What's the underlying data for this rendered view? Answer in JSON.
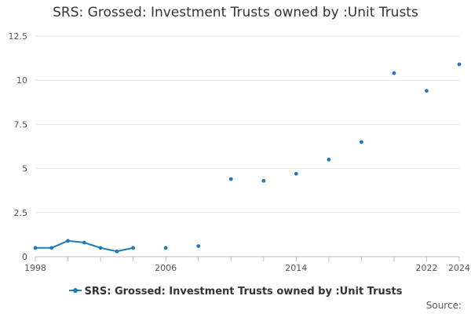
{
  "chart_data": {
    "type": "line",
    "title": "SRS: Grossed: Investment Trusts owned by :Unit Trusts",
    "xlabel": "",
    "ylabel": "",
    "xlim": [
      1998,
      2024
    ],
    "ylim": [
      0,
      12.5
    ],
    "x_ticks": [
      1998,
      2006,
      2014,
      2022,
      2024
    ],
    "y_ticks": [
      0,
      2.5,
      5,
      7.5,
      10,
      12.5
    ],
    "y_tick_labels": [
      "0",
      "2.5",
      "5",
      "7.5",
      "10",
      "12.5"
    ],
    "grid": true,
    "legend_position": "bottom",
    "series": [
      {
        "name": "SRS: Grossed: Investment Trusts owned by :Unit Trusts",
        "color": "#1f7ab8",
        "points": [
          {
            "x": 1998,
            "y": 0.5
          },
          {
            "x": 1999,
            "y": 0.5
          },
          {
            "x": 2000,
            "y": 0.9
          },
          {
            "x": 2001,
            "y": 0.8
          },
          {
            "x": 2002,
            "y": 0.5
          },
          {
            "x": 2003,
            "y": 0.3
          },
          {
            "x": 2004,
            "y": 0.5
          },
          {
            "x": 2006,
            "y": 0.5
          },
          {
            "x": 2008,
            "y": 0.6
          },
          {
            "x": 2010,
            "y": 4.4
          },
          {
            "x": 2012,
            "y": 4.3
          },
          {
            "x": 2014,
            "y": 4.7
          },
          {
            "x": 2016,
            "y": 5.5
          },
          {
            "x": 2018,
            "y": 6.5
          },
          {
            "x": 2020,
            "y": 10.4
          },
          {
            "x": 2022,
            "y": 9.4
          },
          {
            "x": 2024,
            "y": 10.9
          }
        ]
      }
    ]
  },
  "footer": {
    "source_label": "Source:"
  }
}
